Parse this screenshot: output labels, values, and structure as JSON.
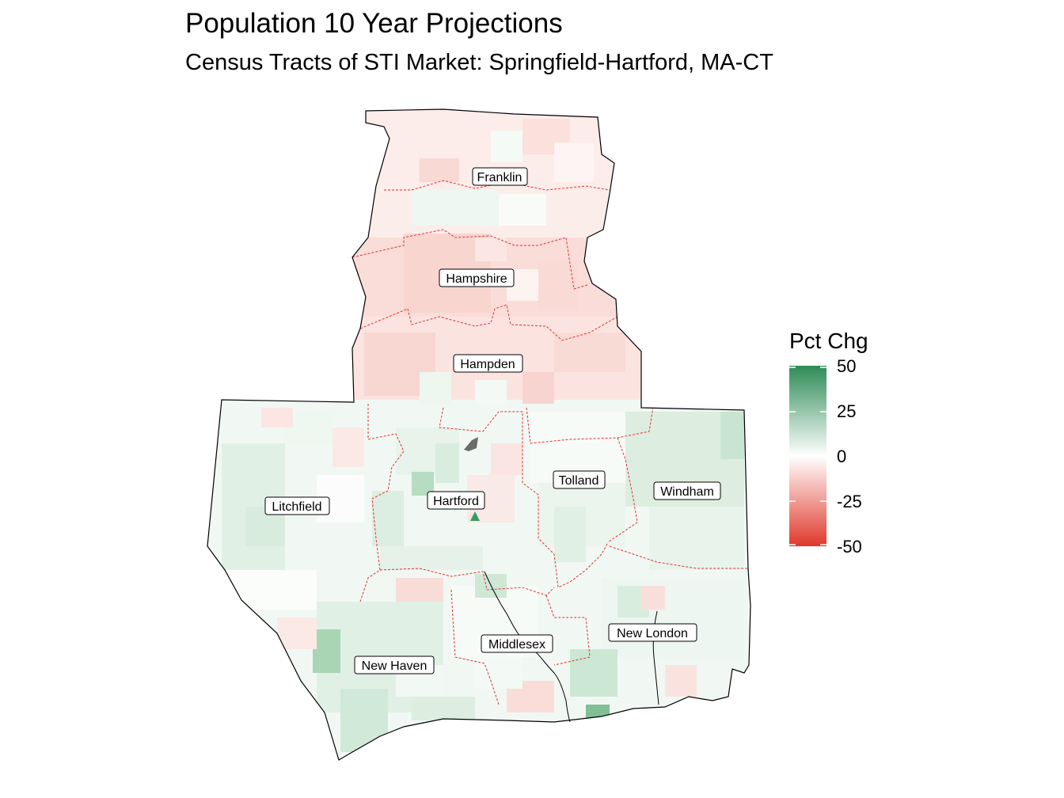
{
  "title": "Population 10 Year Projections",
  "subtitle": "Census Tracts of STI Market: Springfield-Hartford, MA-CT",
  "legend": {
    "title": "Pct Chg",
    "ticks": [
      "50",
      "25",
      "0",
      "-25",
      "-50"
    ],
    "colors": {
      "high": "#2E8B57",
      "mid": "#FFFFFF",
      "low": "#E0382B"
    }
  },
  "counties": [
    {
      "name": "Franklin"
    },
    {
      "name": "Hampshire"
    },
    {
      "name": "Hampden"
    },
    {
      "name": "Litchfield"
    },
    {
      "name": "Hartford"
    },
    {
      "name": "Tolland"
    },
    {
      "name": "Windham"
    },
    {
      "name": "Middlesex"
    },
    {
      "name": "New London"
    },
    {
      "name": "New Haven"
    }
  ],
  "colors": {
    "county_border": "#E03030",
    "outline": "#000000",
    "missing": "#6B6B6B"
  }
}
